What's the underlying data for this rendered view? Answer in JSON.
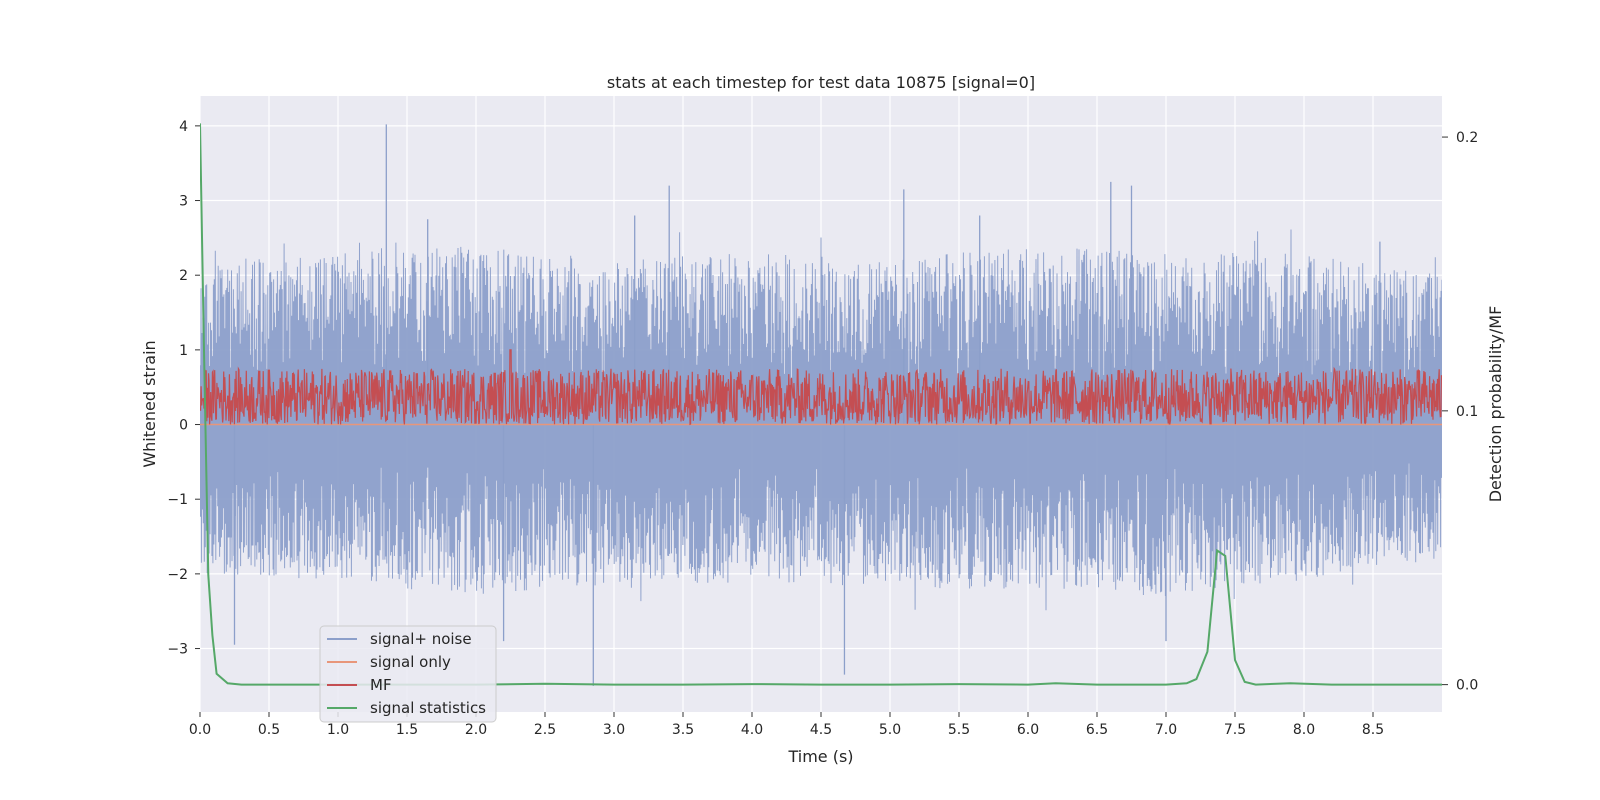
{
  "chart_data": {
    "type": "line",
    "title": "stats at each timestep for test data 10875 [signal=0]",
    "xlabel": "Time (s)",
    "ylabel": "Whitened strain",
    "ylabel_right": "Detection probability/MF",
    "xlim": [
      0,
      9.0
    ],
    "ylim": [
      -3.85,
      4.4
    ],
    "ylim_right": [
      -0.01,
      0.215
    ],
    "x_ticks": [
      0,
      0.5,
      1.0,
      1.5,
      2.0,
      2.5,
      3.0,
      3.5,
      4.0,
      4.5,
      5.0,
      5.5,
      6.0,
      6.5,
      7.0,
      7.5,
      8.0,
      8.5
    ],
    "x_tick_labels": [
      "0.0",
      "0.5",
      "1.0",
      "1.5",
      "2.0",
      "2.5",
      "3.0",
      "3.5",
      "4.0",
      "4.5",
      "5.0",
      "5.5",
      "6.0",
      "6.5",
      "7.0",
      "7.5",
      "8.0",
      "8.5"
    ],
    "y_ticks": [
      4,
      3,
      2,
      1,
      0,
      -1,
      -2,
      -3
    ],
    "y_tick_labels": [
      "4",
      "3",
      "2",
      "1",
      "0",
      "−1",
      "−2",
      "−3"
    ],
    "y_right_ticks": [
      0.2,
      0.1,
      0.0
    ],
    "y_right_tick_labels": [
      "0.2",
      "0.1",
      "0.0"
    ],
    "grid": true,
    "legend_position": "lower-left",
    "colors": {
      "signal_noise": "#8c9fca",
      "signal_only": "#e8967a",
      "mf": "#c44e52",
      "signal_statistics": "#55a868",
      "plot_bg": "#eaeaf2",
      "grid": "#ffffff"
    },
    "series": [
      {
        "name": "signal+ noise",
        "axis": "left",
        "envelope": {
          "x": [
            0.0,
            1.0,
            2.0,
            2.5,
            3.0,
            4.0,
            5.0,
            6.0,
            7.0,
            8.0,
            9.0
          ],
          "upper": [
            2.2,
            2.3,
            2.4,
            2.3,
            2.2,
            2.3,
            2.2,
            2.4,
            2.3,
            2.3,
            2.0
          ],
          "lower": [
            -2.0,
            -2.1,
            -2.3,
            -2.2,
            -2.2,
            -2.1,
            -2.2,
            -2.2,
            -2.3,
            -2.1,
            -1.8
          ]
        },
        "spikes": [
          [
            1.35,
            4.02
          ],
          [
            3.4,
            3.2
          ],
          [
            5.1,
            3.15
          ],
          [
            6.6,
            3.25
          ],
          [
            6.75,
            3.2
          ],
          [
            2.85,
            -3.5
          ],
          [
            4.67,
            -3.35
          ],
          [
            7.0,
            -2.9
          ],
          [
            2.2,
            -2.9
          ],
          [
            0.25,
            -2.95
          ],
          [
            1.65,
            2.75
          ],
          [
            3.15,
            2.8
          ],
          [
            5.65,
            2.8
          ],
          [
            8.55,
            2.45
          ]
        ]
      },
      {
        "name": "signal only",
        "axis": "left",
        "x": [
          0.0,
          9.0
        ],
        "values": [
          0.0,
          0.0
        ]
      },
      {
        "name": "MF",
        "axis": "left",
        "band": [
          0.0,
          0.75
        ],
        "mean": 0.3,
        "peak": [
          2.25,
          1.0
        ]
      },
      {
        "name": "signal statistics",
        "axis": "right",
        "x": [
          0.0,
          0.03,
          0.06,
          0.09,
          0.12,
          0.2,
          0.3,
          0.5,
          1.0,
          2.0,
          2.5,
          3.0,
          3.5,
          4.0,
          4.5,
          5.0,
          5.5,
          6.0,
          6.2,
          6.5,
          7.0,
          7.15,
          7.22,
          7.3,
          7.37,
          7.43,
          7.5,
          7.57,
          7.65,
          7.9,
          8.2,
          9.0
        ],
        "values": [
          0.205,
          0.12,
          0.04,
          0.018,
          0.004,
          0.0005,
          0.0,
          0.0,
          0.0,
          0.0,
          0.0003,
          0.0,
          0.0,
          0.0002,
          0.0,
          0.0,
          0.0002,
          0.0,
          0.0005,
          0.0,
          0.0,
          0.0005,
          0.002,
          0.012,
          0.049,
          0.047,
          0.009,
          0.001,
          0.0,
          0.0005,
          0.0,
          0.0
        ]
      }
    ]
  }
}
